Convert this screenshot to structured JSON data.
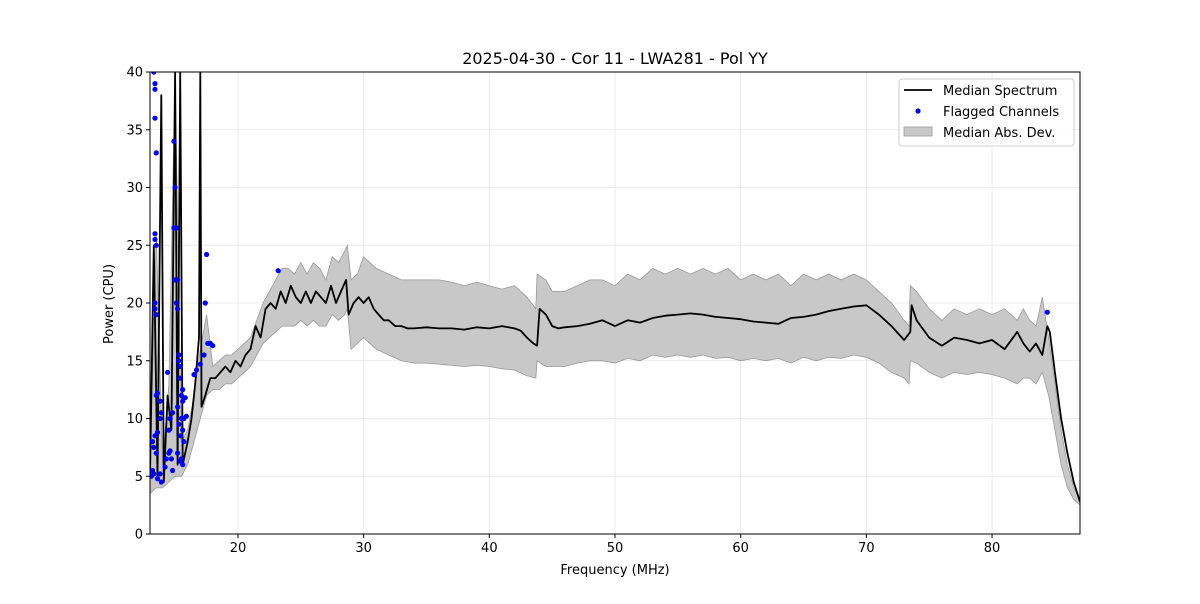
{
  "chart_data": {
    "type": "line",
    "title": "2025-04-30 - Cor 11 - LWA281 - Pol YY",
    "xlabel": "Frequency (MHz)",
    "ylabel": "Power (CPU)",
    "xlim": [
      13,
      87
    ],
    "ylim": [
      0,
      40
    ],
    "xticks": [
      20,
      30,
      40,
      50,
      60,
      70,
      80
    ],
    "yticks": [
      0,
      5,
      10,
      15,
      20,
      25,
      30,
      35,
      40
    ],
    "grid": true,
    "legend_position": "upper-right",
    "colors": {
      "median": "#000000",
      "flagged": "#0000ff",
      "mad_fill": "#c8c8c8",
      "mad_edge": "#999999"
    },
    "series": [
      {
        "name": "Median Spectrum",
        "kind": "line",
        "x": [
          13.0,
          13.3,
          13.6,
          13.9,
          14.1,
          14.4,
          14.7,
          15.0,
          15.2,
          15.4,
          15.6,
          15.8,
          16.0,
          16.3,
          16.6,
          16.9,
          17.0,
          17.1,
          17.4,
          17.8,
          18.2,
          18.6,
          19.0,
          19.4,
          19.8,
          20.2,
          20.6,
          21.0,
          21.4,
          21.8,
          22.2,
          22.6,
          23.0,
          23.4,
          23.8,
          24.2,
          24.6,
          25.0,
          25.4,
          25.8,
          26.2,
          26.6,
          27.0,
          27.4,
          27.8,
          28.2,
          28.6,
          28.8,
          29.2,
          29.6,
          30.0,
          30.4,
          30.8,
          31.2,
          31.6,
          32.0,
          32.5,
          33.0,
          33.5,
          34.0,
          35.0,
          36.0,
          37.0,
          38.0,
          39.0,
          40.0,
          41.0,
          42.0,
          42.5,
          43.0,
          43.5,
          43.8,
          44.0,
          44.5,
          45.0,
          45.5,
          46.0,
          47.0,
          48.0,
          49.0,
          50.0,
          51.0,
          52.0,
          53.0,
          54.0,
          55.0,
          56.0,
          57.0,
          58.0,
          59.0,
          60.0,
          61.0,
          62.0,
          63.0,
          64.0,
          65.0,
          66.0,
          67.0,
          68.0,
          69.0,
          70.0,
          71.0,
          72.0,
          73.0,
          73.5,
          73.6,
          74.0,
          75.0,
          76.0,
          77.0,
          78.0,
          79.0,
          80.0,
          81.0,
          82.0,
          82.5,
          83.0,
          83.5,
          84.0,
          84.4,
          84.6,
          85.0,
          85.5,
          86.0,
          86.5,
          87.0
        ],
        "values": [
          5.0,
          25.0,
          5.0,
          38.0,
          4.5,
          12.0,
          9.0,
          40.0,
          6.0,
          40.0,
          6.0,
          7.0,
          8.0,
          10.0,
          13.0,
          17.0,
          40.0,
          11.0,
          12.0,
          13.5,
          13.5,
          14.0,
          14.5,
          14.0,
          15.0,
          14.5,
          15.5,
          16.0,
          18.0,
          17.0,
          19.5,
          20.0,
          19.5,
          21.0,
          20.0,
          21.5,
          20.5,
          20.0,
          21.0,
          20.0,
          21.0,
          20.5,
          20.0,
          21.5,
          20.0,
          21.0,
          22.0,
          19.0,
          20.0,
          20.5,
          20.0,
          20.5,
          19.5,
          19.0,
          18.5,
          18.5,
          18.0,
          18.0,
          17.8,
          17.8,
          17.9,
          17.8,
          17.8,
          17.7,
          17.9,
          17.8,
          18.0,
          17.8,
          17.6,
          17.0,
          16.5,
          16.3,
          19.5,
          19.0,
          18.0,
          17.8,
          17.9,
          18.0,
          18.2,
          18.5,
          18.0,
          18.5,
          18.3,
          18.7,
          18.9,
          19.0,
          19.1,
          19.0,
          18.8,
          18.7,
          18.6,
          18.4,
          18.3,
          18.2,
          18.7,
          18.8,
          19.0,
          19.3,
          19.5,
          19.7,
          19.8,
          19.0,
          18.0,
          16.8,
          17.5,
          19.8,
          18.5,
          17.0,
          16.3,
          17.0,
          16.8,
          16.5,
          16.8,
          16.0,
          17.5,
          16.5,
          15.8,
          16.5,
          15.5,
          18.0,
          17.5,
          14.0,
          10.0,
          7.0,
          4.5,
          2.8
        ]
      },
      {
        "name": "Median Abs. Dev.",
        "kind": "band",
        "x": [
          13.0,
          13.5,
          14.0,
          14.5,
          15.0,
          15.5,
          16.0,
          16.5,
          17.0,
          17.5,
          18.0,
          18.5,
          19.0,
          19.5,
          20.0,
          20.5,
          21.0,
          21.5,
          22.0,
          22.5,
          23.0,
          23.5,
          24.0,
          24.5,
          25.0,
          25.5,
          26.0,
          26.5,
          27.0,
          27.5,
          28.0,
          28.5,
          28.7,
          29.0,
          29.5,
          30.0,
          30.5,
          31.0,
          32.0,
          33.0,
          34.0,
          35.0,
          36.0,
          37.0,
          38.0,
          39.0,
          40.0,
          41.0,
          42.0,
          43.0,
          43.7,
          43.8,
          44.5,
          45.0,
          46.0,
          47.0,
          48.0,
          49.0,
          50.0,
          51.0,
          52.0,
          53.0,
          54.0,
          55.0,
          56.0,
          57.0,
          58.0,
          59.0,
          60.0,
          61.0,
          62.0,
          63.0,
          64.0,
          65.0,
          66.0,
          67.0,
          68.0,
          69.0,
          70.0,
          71.0,
          72.0,
          73.0,
          73.4,
          73.5,
          74.0,
          75.0,
          76.0,
          77.0,
          78.0,
          79.0,
          80.0,
          81.0,
          82.0,
          82.5,
          83.0,
          83.5,
          84.0,
          84.5,
          85.0,
          85.5,
          86.0,
          86.5,
          87.0
        ],
        "upper": [
          5.5,
          26.0,
          6.0,
          13.0,
          40.0,
          8.0,
          9.0,
          12.0,
          16.0,
          19.0,
          14.5,
          15.0,
          15.5,
          15.5,
          16.0,
          16.5,
          17.0,
          18.5,
          20.0,
          21.0,
          22.0,
          23.0,
          23.0,
          22.5,
          23.5,
          22.5,
          23.5,
          23.0,
          22.0,
          24.0,
          23.5,
          24.5,
          25.0,
          22.0,
          22.5,
          24.0,
          23.5,
          23.0,
          22.5,
          22.0,
          22.0,
          22.0,
          22.0,
          21.8,
          21.5,
          21.8,
          21.5,
          21.2,
          21.5,
          20.5,
          19.5,
          22.5,
          22.0,
          21.0,
          21.0,
          21.5,
          22.0,
          22.0,
          21.5,
          22.5,
          22.0,
          23.0,
          22.5,
          23.0,
          22.5,
          23.0,
          22.5,
          23.0,
          22.0,
          22.5,
          22.0,
          22.5,
          21.5,
          22.5,
          22.0,
          22.5,
          22.0,
          22.5,
          22.0,
          21.0,
          20.0,
          18.5,
          18.0,
          21.5,
          21.0,
          19.5,
          18.5,
          19.5,
          19.0,
          19.5,
          19.0,
          19.5,
          18.5,
          19.5,
          18.5,
          18.0,
          20.5,
          17.0,
          13.0,
          9.0,
          6.0,
          4.0,
          3.0
        ],
        "lower": [
          3.5,
          4.0,
          4.0,
          4.5,
          5.0,
          5.0,
          6.0,
          8.0,
          10.0,
          12.0,
          12.5,
          12.5,
          13.0,
          13.0,
          13.5,
          14.0,
          14.5,
          15.5,
          16.5,
          17.0,
          17.5,
          18.0,
          18.0,
          18.0,
          18.5,
          18.0,
          18.5,
          18.0,
          18.0,
          19.0,
          18.5,
          19.0,
          19.5,
          16.0,
          16.5,
          17.0,
          16.5,
          16.0,
          15.5,
          15.0,
          14.8,
          14.8,
          14.7,
          14.6,
          14.5,
          14.6,
          14.5,
          14.3,
          14.2,
          13.7,
          13.5,
          15.0,
          14.5,
          14.5,
          14.5,
          14.8,
          15.0,
          15.0,
          14.8,
          15.2,
          15.0,
          15.5,
          15.3,
          15.5,
          15.3,
          15.5,
          15.2,
          15.3,
          15.0,
          15.2,
          15.0,
          15.2,
          14.8,
          15.3,
          15.0,
          15.3,
          15.2,
          15.5,
          15.3,
          14.8,
          14.0,
          13.5,
          13.0,
          15.0,
          14.8,
          14.0,
          13.5,
          14.0,
          13.8,
          14.0,
          13.8,
          13.5,
          13.0,
          13.5,
          13.5,
          13.0,
          14.0,
          12.0,
          9.0,
          6.0,
          4.0,
          3.0,
          2.5
        ]
      },
      {
        "name": "Flagged Channels",
        "kind": "scatter",
        "points": [
          [
            13.3,
            40.0
          ],
          [
            13.4,
            39.0
          ],
          [
            13.4,
            38.5
          ],
          [
            13.4,
            36.0
          ],
          [
            13.5,
            33.0
          ],
          [
            13.4,
            26.0
          ],
          [
            13.4,
            25.5
          ],
          [
            13.5,
            25.0
          ],
          [
            13.4,
            20.0
          ],
          [
            13.4,
            19.5
          ],
          [
            13.5,
            19.0
          ],
          [
            13.5,
            12.0
          ],
          [
            13.6,
            12.2
          ],
          [
            13.8,
            11.5
          ],
          [
            13.9,
            10.5
          ],
          [
            13.8,
            10.0
          ],
          [
            13.2,
            8.0
          ],
          [
            13.3,
            7.5
          ],
          [
            13.5,
            7.0
          ],
          [
            13.4,
            8.5
          ],
          [
            13.6,
            8.8
          ],
          [
            13.2,
            5.5
          ],
          [
            13.1,
            5.0
          ],
          [
            13.3,
            5.2
          ],
          [
            13.6,
            4.8
          ],
          [
            13.9,
            4.5
          ],
          [
            13.8,
            5.2
          ],
          [
            14.2,
            5.8
          ],
          [
            14.3,
            6.5
          ],
          [
            14.5,
            7.0
          ],
          [
            14.6,
            7.2
          ],
          [
            14.4,
            14.0
          ],
          [
            14.6,
            10.0
          ],
          [
            14.8,
            10.5
          ],
          [
            14.5,
            9.0
          ],
          [
            14.7,
            6.5
          ],
          [
            14.9,
            34.0
          ],
          [
            15.0,
            30.0
          ],
          [
            15.1,
            26.5
          ],
          [
            14.9,
            26.5
          ],
          [
            15.0,
            22.0
          ],
          [
            15.2,
            22.0
          ],
          [
            15.1,
            20.0
          ],
          [
            15.2,
            19.5
          ],
          [
            15.3,
            15.5
          ],
          [
            15.3,
            15.0
          ],
          [
            15.4,
            14.5
          ],
          [
            15.4,
            13.5
          ],
          [
            15.5,
            12.0
          ],
          [
            15.6,
            12.5
          ],
          [
            15.2,
            11.0
          ],
          [
            15.5,
            10.0
          ],
          [
            15.7,
            10.0
          ],
          [
            15.9,
            10.2
          ],
          [
            15.6,
            11.5
          ],
          [
            15.8,
            11.8
          ],
          [
            15.3,
            9.5
          ],
          [
            15.6,
            9.0
          ],
          [
            15.4,
            8.5
          ],
          [
            15.7,
            8.0
          ],
          [
            15.2,
            7.0
          ],
          [
            15.5,
            6.5
          ],
          [
            15.6,
            6.0
          ],
          [
            15.4,
            6.3
          ],
          [
            14.8,
            5.5
          ],
          [
            16.5,
            13.8
          ],
          [
            16.7,
            14.2
          ],
          [
            17.0,
            14.7
          ],
          [
            17.3,
            15.5
          ],
          [
            17.5,
            24.2
          ],
          [
            17.4,
            20.0
          ],
          [
            17.6,
            16.5
          ],
          [
            17.8,
            16.5
          ],
          [
            18.0,
            16.3
          ],
          [
            23.2,
            22.8
          ],
          [
            84.4,
            19.2
          ]
        ]
      }
    ]
  }
}
